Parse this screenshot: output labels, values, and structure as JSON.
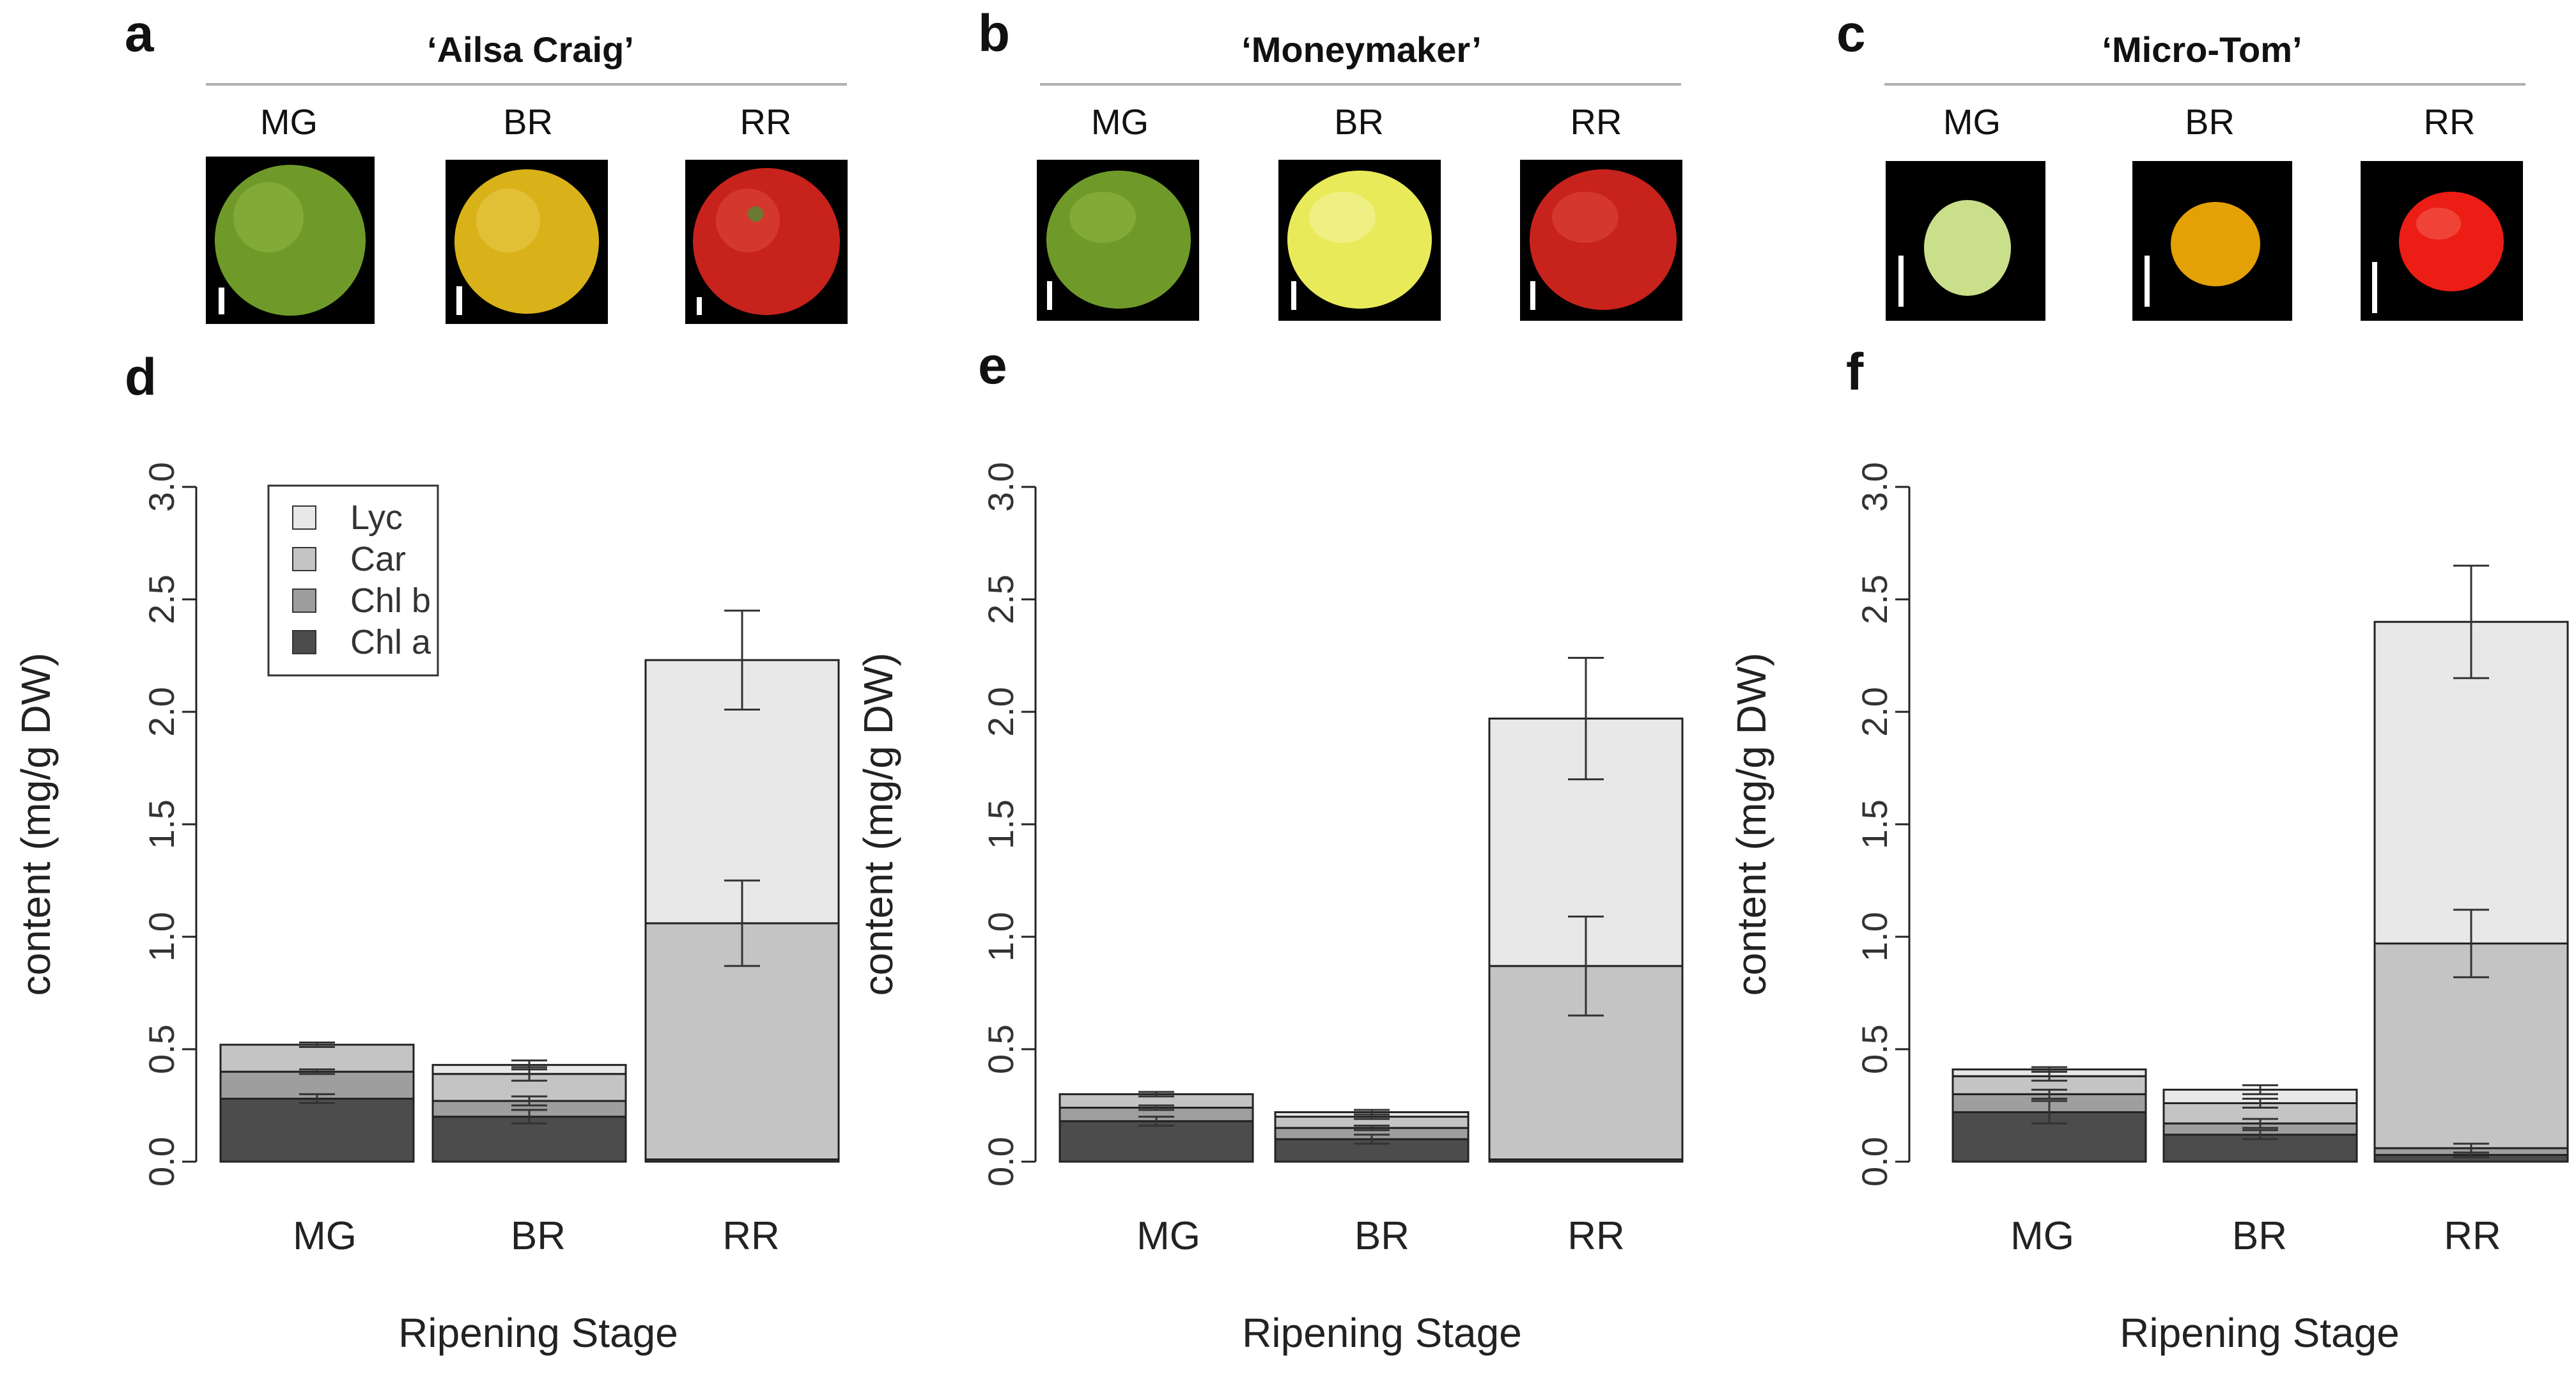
{
  "colors": {
    "lyc": "#e8e8e8",
    "car": "#c4c4c4",
    "chl_b": "#9e9e9e",
    "chl_a": "#4c4c4c",
    "photo_bg": "#000000",
    "green_fruit": "#6f9a2a",
    "yellow_fruit": "#d9b21a",
    "red_fruit": "#c8221c",
    "pale_green_fruit": "#c9df8a",
    "pale_yellow_fruit": "#e9ea5a",
    "orange_fruit": "#e3a106",
    "bright_red_fruit": "#ec1d14"
  },
  "panels_top": [
    {
      "letter": "a",
      "cultivar": "‘Ailsa Craig’",
      "stages": [
        "MG",
        "BR",
        "RR"
      ],
      "fruit_colors": [
        "green_fruit",
        "yellow_fruit",
        "red_fruit"
      ]
    },
    {
      "letter": "b",
      "cultivar": "‘Moneymaker’",
      "stages": [
        "MG",
        "BR",
        "RR"
      ],
      "fruit_colors": [
        "green_fruit",
        "pale_yellow_fruit",
        "red_fruit"
      ]
    },
    {
      "letter": "c",
      "cultivar": "‘Micro-Tom’",
      "stages": [
        "MG",
        "BR",
        "RR"
      ],
      "fruit_colors": [
        "pale_green_fruit",
        "orange_fruit",
        "bright_red_fruit"
      ]
    }
  ],
  "chart_data": [
    {
      "letter": "d",
      "type": "bar",
      "stacked": true,
      "xlabel": "Ripening Stage",
      "ylabel": "content (mg/g DW)",
      "ylim": [
        0,
        3.0
      ],
      "yticks": [
        "0.0",
        "0.5",
        "1.0",
        "1.5",
        "2.0",
        "2.5",
        "3.0"
      ],
      "categories": [
        "MG",
        "BR",
        "RR"
      ],
      "legend": [
        "Lyc",
        "Car",
        "Chl b",
        "Chl a"
      ],
      "legend_position": "top-left",
      "series": [
        {
          "name": "Chl a",
          "values": [
            0.28,
            0.2,
            0.01
          ],
          "errors": [
            0.02,
            0.03,
            0.0
          ]
        },
        {
          "name": "Chl b",
          "values": [
            0.12,
            0.07,
            0.0
          ],
          "errors": [
            0.01,
            0.02,
            0.0
          ]
        },
        {
          "name": "Car",
          "values": [
            0.12,
            0.12,
            1.05
          ],
          "errors": [
            0.01,
            0.03,
            0.19
          ]
        },
        {
          "name": "Lyc",
          "values": [
            0.0,
            0.04,
            1.17
          ],
          "errors": [
            0.0,
            0.02,
            0.22
          ]
        }
      ]
    },
    {
      "letter": "e",
      "type": "bar",
      "stacked": true,
      "xlabel": "Ripening Stage",
      "ylabel": "content (mg/g DW)",
      "ylim": [
        0,
        3.0
      ],
      "yticks": [
        "0.0",
        "0.5",
        "1.0",
        "1.5",
        "2.0",
        "2.5",
        "3.0"
      ],
      "categories": [
        "MG",
        "BR",
        "RR"
      ],
      "series": [
        {
          "name": "Chl a",
          "values": [
            0.18,
            0.1,
            0.01
          ],
          "errors": [
            0.02,
            0.02,
            0.0
          ]
        },
        {
          "name": "Chl b",
          "values": [
            0.06,
            0.05,
            0.0
          ],
          "errors": [
            0.01,
            0.01,
            0.0
          ]
        },
        {
          "name": "Car",
          "values": [
            0.06,
            0.05,
            0.86
          ],
          "errors": [
            0.01,
            0.01,
            0.22
          ]
        },
        {
          "name": "Lyc",
          "values": [
            0.0,
            0.02,
            1.1
          ],
          "errors": [
            0.0,
            0.01,
            0.27
          ]
        }
      ]
    },
    {
      "letter": "f",
      "type": "bar",
      "stacked": true,
      "xlabel": "Ripening Stage",
      "ylabel": "content (mg/g DW)",
      "ylim": [
        0,
        3.0
      ],
      "yticks": [
        "0.0",
        "0.5",
        "1.0",
        "1.5",
        "2.0",
        "2.5",
        "3.0"
      ],
      "categories": [
        "MG",
        "BR",
        "RR"
      ],
      "series": [
        {
          "name": "Chl a",
          "values": [
            0.22,
            0.12,
            0.03
          ],
          "errors": [
            0.05,
            0.02,
            0.01
          ]
        },
        {
          "name": "Chl b",
          "values": [
            0.08,
            0.05,
            0.03
          ],
          "errors": [
            0.02,
            0.02,
            0.02
          ]
        },
        {
          "name": "Car",
          "values": [
            0.08,
            0.09,
            0.91
          ],
          "errors": [
            0.02,
            0.02,
            0.15
          ]
        },
        {
          "name": "Lyc",
          "values": [
            0.03,
            0.06,
            1.43
          ],
          "errors": [
            0.01,
            0.02,
            0.25
          ]
        }
      ]
    }
  ]
}
